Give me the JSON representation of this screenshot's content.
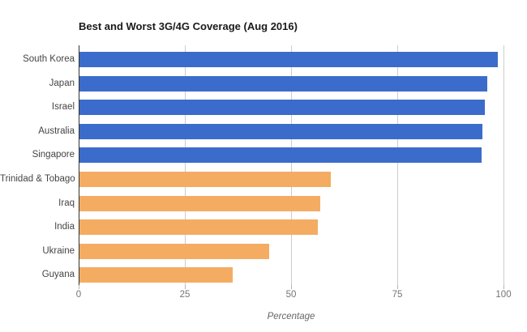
{
  "chart_data": {
    "type": "bar",
    "orientation": "horizontal",
    "title": "Best and Worst 3G/4G Coverage (Aug 2016)",
    "xlabel": "Percentage",
    "ylabel": "",
    "categories": [
      "South Korea",
      "Japan",
      "Israel",
      "Australia",
      "Singapore",
      "Trinidad & Tobago",
      "Iraq",
      "India",
      "Ukraine",
      "Guyana"
    ],
    "values": [
      98.5,
      95.9,
      95.4,
      94.9,
      94.6,
      59.1,
      56.7,
      56.1,
      44.7,
      36.1
    ],
    "bar_colors": [
      "#3B6CCB",
      "#3B6CCB",
      "#3B6CCB",
      "#3B6CCB",
      "#3B6CCB",
      "#F4AC62",
      "#F4AC62",
      "#F4AC62",
      "#F4AC62",
      "#F4AC62"
    ],
    "xlim": [
      0,
      100
    ],
    "xticks": [
      0,
      25,
      50,
      75,
      100
    ],
    "grid": true,
    "legend": "none"
  },
  "colors": {
    "best_series": "#3B6CCB",
    "worst_series": "#F4AC62",
    "gridline": "#CCCCCC",
    "axis_line": "#333333",
    "background": "#FFFFFF"
  }
}
